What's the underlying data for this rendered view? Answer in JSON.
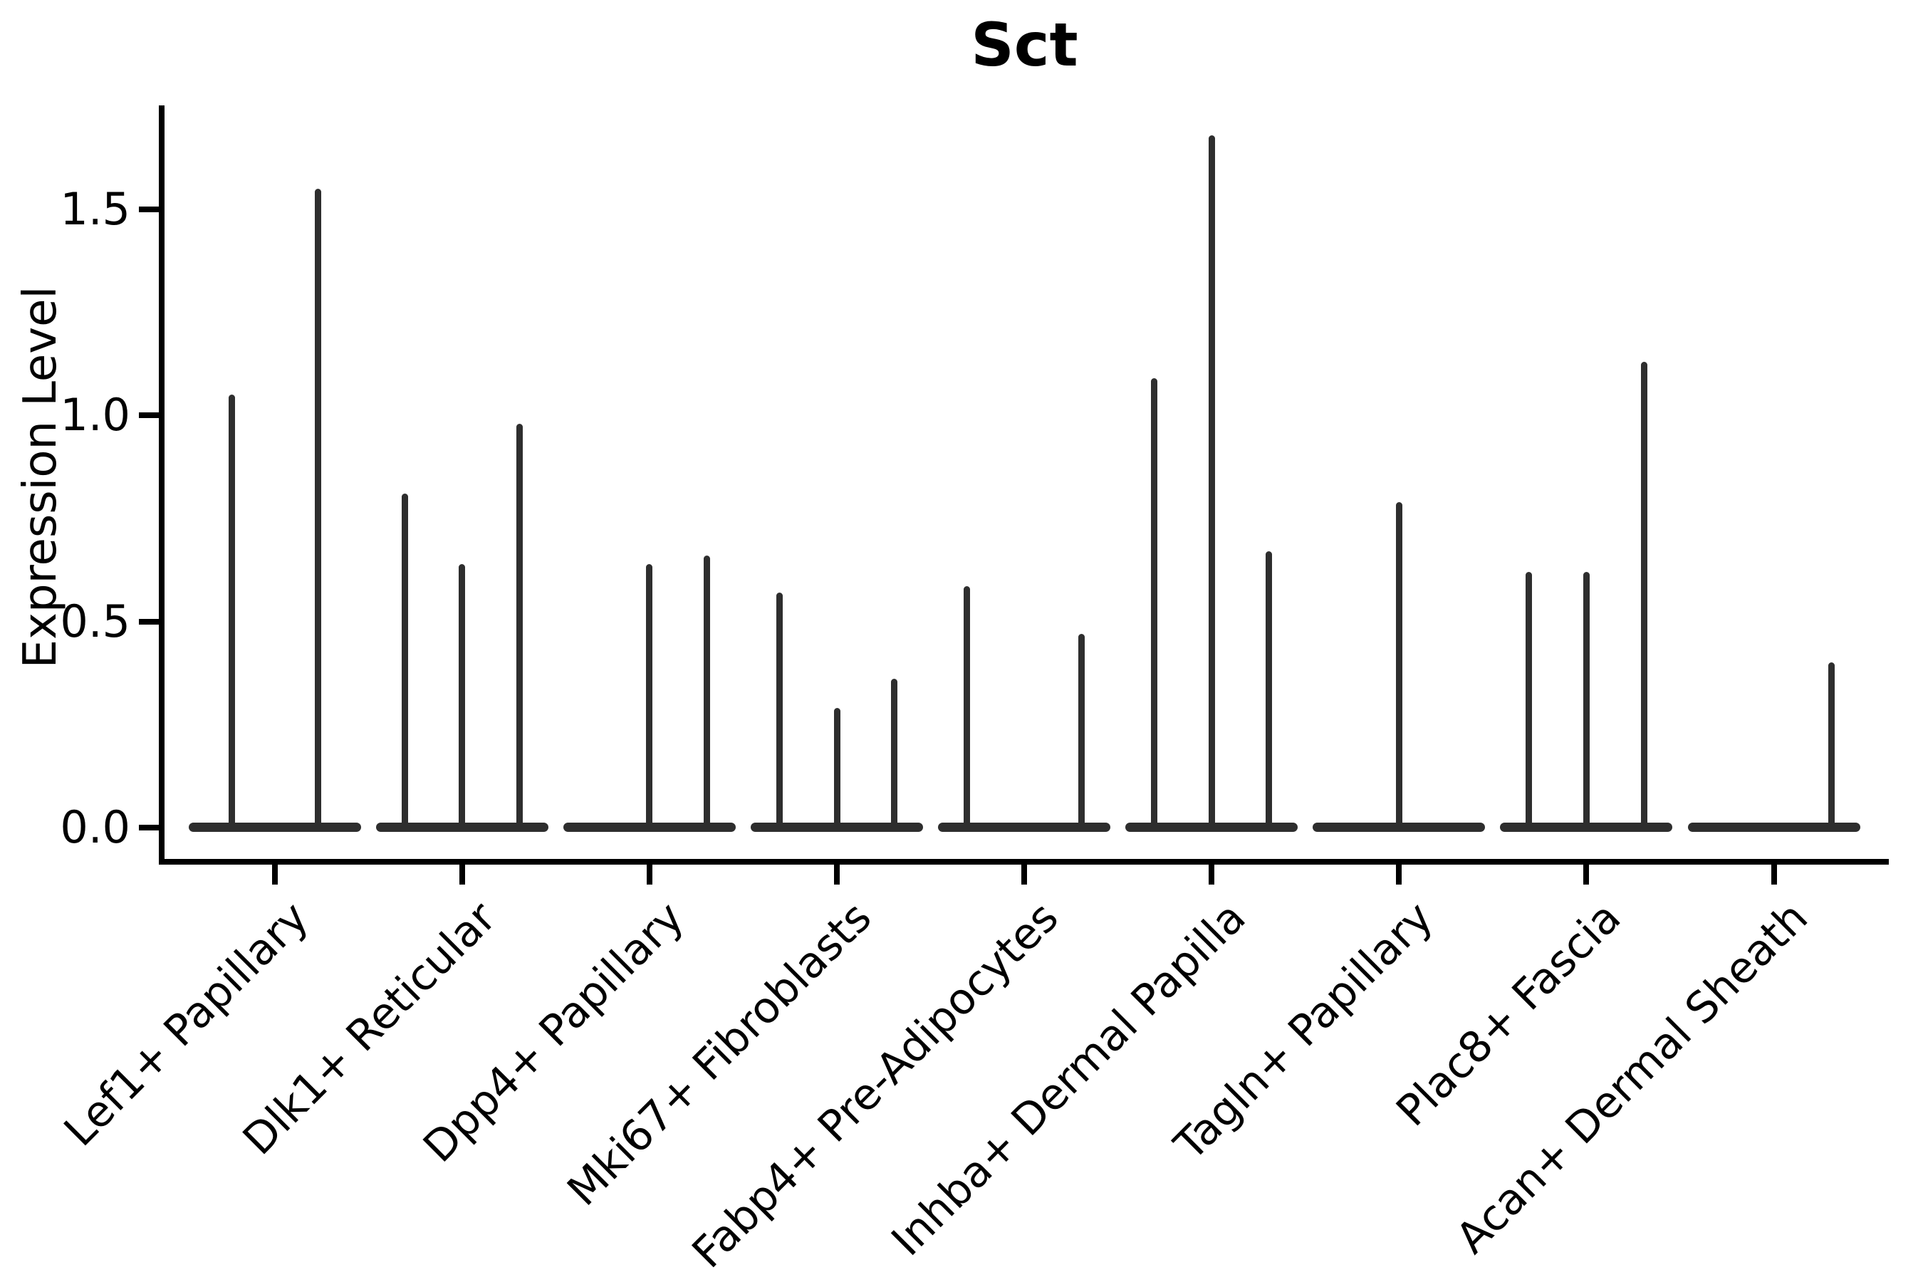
{
  "chart_data": {
    "type": "violin",
    "title": "Sct",
    "ylabel": "Expression Level",
    "xlabel": "",
    "grid": false,
    "legend": "none",
    "ylim": [
      -0.08,
      1.75
    ],
    "ytick_labels": [
      "0.0",
      "0.5",
      "1.0",
      "1.5"
    ],
    "ytick_values": [
      0.0,
      0.5,
      1.0,
      1.5
    ],
    "categories": [
      "Lef1+ Papillary",
      "Dlk1+ Reticular",
      "Dpp4+ Papillary",
      "Mki67+ Fibroblasts",
      "Fabp4+ Pre-Adipocytes",
      "Inhba+ Dermal Papilla",
      "Tagln+ Papillary",
      "Plac8+ Fascia",
      "Acan+ Dermal Sheath"
    ],
    "series_note": "Each category shows thin violins sitting on a flat base at 0; values below are the peak (max) expression of each violin in left-to-right order; 0 means a flat violin with no visible spike.",
    "violin_max_values": [
      [
        1.05,
        1.55
      ],
      [
        0.81,
        0.64,
        0.98
      ],
      [
        0.0,
        0.64,
        0.66
      ],
      [
        0.57,
        0.29,
        0.36
      ],
      [
        0.585,
        0.0,
        0.47
      ],
      [
        1.09,
        1.68,
        0.67
      ],
      [
        0.79
      ],
      [
        0.62,
        0.62,
        1.13
      ],
      [
        0.0,
        0.0,
        0.4
      ]
    ],
    "violin_color": "#2e2e2e",
    "axis_color": "#000000"
  }
}
